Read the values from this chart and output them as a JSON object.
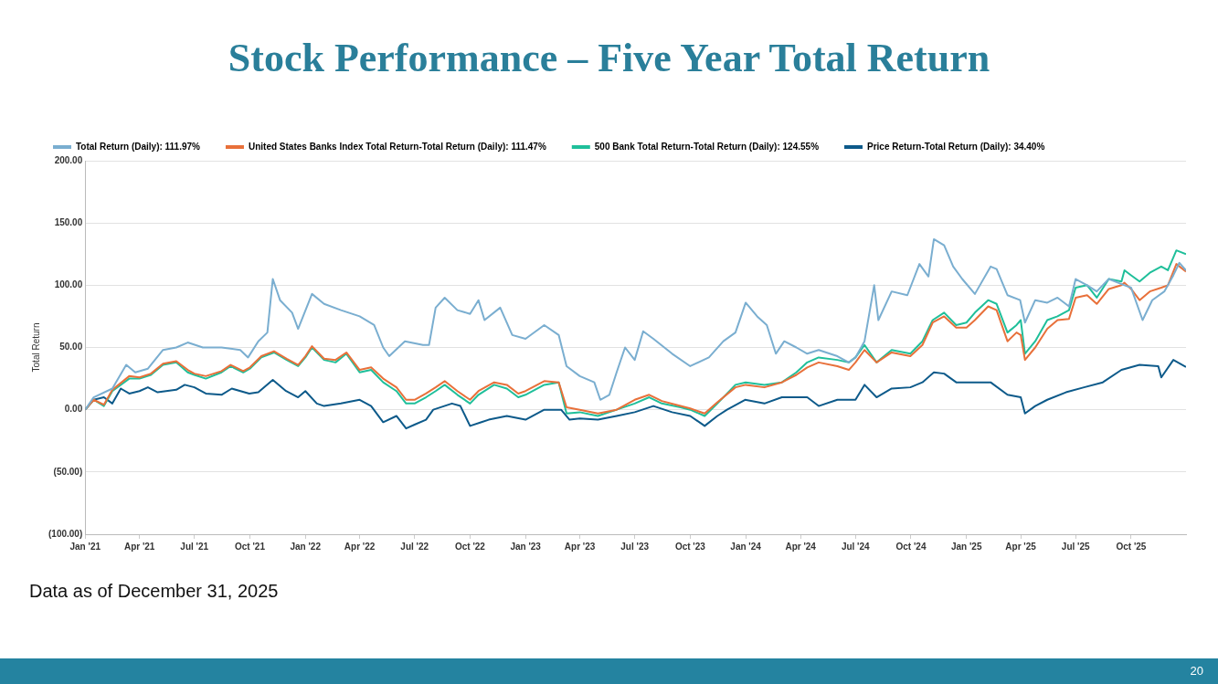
{
  "chart_data": {
    "type": "line",
    "title": "Stock Performance – Five Year Total Return",
    "ylabel": "Total Return",
    "annotations": [
      "Data as of December 31, 2025",
      "20"
    ],
    "legend": "top",
    "grid": "y",
    "marker": "none",
    "line_style": "solid",
    "ylim": [
      -100,
      200
    ],
    "yticks": [
      {
        "value": -100,
        "label": "(100.00)"
      },
      {
        "value": -50,
        "label": "(50.00)"
      },
      {
        "value": 0,
        "label": "0.00"
      },
      {
        "value": 50,
        "label": "50.00"
      },
      {
        "value": 100,
        "label": "100.00"
      },
      {
        "value": 150,
        "label": "150.00"
      },
      {
        "value": 200,
        "label": "200.00"
      }
    ],
    "xlim": [
      "2021-01-01",
      "2025-12-31"
    ],
    "xticks": [
      {
        "value": "2021-01-01",
        "label": "Jan '21"
      },
      {
        "value": "2021-04-01",
        "label": "Apr '21"
      },
      {
        "value": "2021-07-01",
        "label": "Jul '21"
      },
      {
        "value": "2021-10-01",
        "label": "Oct '21"
      },
      {
        "value": "2022-01-01",
        "label": "Jan '22"
      },
      {
        "value": "2022-04-01",
        "label": "Apr '22"
      },
      {
        "value": "2022-07-01",
        "label": "Jul '22"
      },
      {
        "value": "2022-10-01",
        "label": "Oct '22"
      },
      {
        "value": "2023-01-01",
        "label": "Jan '23"
      },
      {
        "value": "2023-04-01",
        "label": "Apr '23"
      },
      {
        "value": "2023-07-01",
        "label": "Jul '23"
      },
      {
        "value": "2023-10-01",
        "label": "Oct '23"
      },
      {
        "value": "2024-01-01",
        "label": "Jan '24"
      },
      {
        "value": "2024-04-01",
        "label": "Apr '24"
      },
      {
        "value": "2024-07-01",
        "label": "Jul '24"
      },
      {
        "value": "2024-10-01",
        "label": "Oct '24"
      },
      {
        "value": "2025-01-01",
        "label": "Jan '25"
      },
      {
        "value": "2025-04-01",
        "label": "Apr '25"
      },
      {
        "value": "2025-07-01",
        "label": "Jul '25"
      },
      {
        "value": "2025-10-01",
        "label": "Oct '25"
      }
    ],
    "series": [
      {
        "name": "Total Return (Daily): 111.97%",
        "color": "#7aaed0",
        "x": [
          "2021-01-01",
          "2021-01-15",
          "2021-02-15",
          "2021-03-10",
          "2021-03-25",
          "2021-04-15",
          "2021-05-10",
          "2021-06-01",
          "2021-06-20",
          "2021-07-15",
          "2021-08-15",
          "2021-09-15",
          "2021-09-28",
          "2021-10-15",
          "2021-10-30",
          "2021-11-08",
          "2021-11-20",
          "2021-12-10",
          "2021-12-20",
          "2022-01-12",
          "2022-02-01",
          "2022-03-01",
          "2022-04-01",
          "2022-04-25",
          "2022-05-10",
          "2022-05-20",
          "2022-06-15",
          "2022-07-15",
          "2022-07-25",
          "2022-08-05",
          "2022-08-20",
          "2022-09-10",
          "2022-10-01",
          "2022-10-15",
          "2022-10-25",
          "2022-11-20",
          "2022-12-10",
          "2023-01-01",
          "2023-02-01",
          "2023-02-25",
          "2023-03-10",
          "2023-04-01",
          "2023-04-25",
          "2023-05-05",
          "2023-05-20",
          "2023-06-01",
          "2023-06-15",
          "2023-07-01",
          "2023-07-15",
          "2023-08-01",
          "2023-09-01",
          "2023-10-01",
          "2023-11-01",
          "2023-11-25",
          "2023-12-15",
          "2024-01-01",
          "2024-01-20",
          "2024-02-05",
          "2024-02-20",
          "2024-03-05",
          "2024-03-25",
          "2024-04-12",
          "2024-05-01",
          "2024-06-01",
          "2024-06-20",
          "2024-07-01",
          "2024-07-16",
          "2024-08-01",
          "2024-08-08",
          "2024-08-30",
          "2024-09-25",
          "2024-10-15",
          "2024-10-30",
          "2024-11-08",
          "2024-11-25",
          "2024-12-10",
          "2024-12-25",
          "2025-01-15",
          "2025-02-10",
          "2025-02-20",
          "2025-03-10",
          "2025-03-31",
          "2025-04-08",
          "2025-04-25",
          "2025-05-15",
          "2025-06-01",
          "2025-06-20",
          "2025-07-01",
          "2025-07-20",
          "2025-08-05",
          "2025-08-25",
          "2025-09-20",
          "2025-10-01",
          "2025-10-20",
          "2025-11-05",
          "2025-11-25",
          "2025-12-10",
          "2025-12-20",
          "2025-12-31"
        ],
        "values": [
          0,
          10,
          17,
          36,
          30,
          33,
          48,
          50,
          54,
          50,
          50,
          48,
          42,
          55,
          62,
          105,
          88,
          78,
          65,
          93,
          85,
          80,
          75,
          68,
          50,
          43,
          55,
          52,
          52,
          82,
          90,
          80,
          77,
          88,
          72,
          82,
          60,
          57,
          68,
          60,
          35,
          27,
          22,
          8,
          12,
          30,
          50,
          40,
          63,
          57,
          45,
          35,
          42,
          55,
          62,
          86,
          75,
          68,
          45,
          55,
          50,
          45,
          48,
          43,
          38,
          42,
          55,
          100,
          72,
          95,
          92,
          117,
          107,
          137,
          132,
          115,
          105,
          93,
          115,
          113,
          92,
          88,
          70,
          88,
          86,
          90,
          83,
          105,
          100,
          95,
          105,
          100,
          98,
          72,
          88,
          95,
          108,
          118,
          112
        ]
      },
      {
        "name": "United States Banks Index Total Return-Total Return (Daily): 111.47%",
        "color": "#e8703a",
        "x": [
          "2021-01-01",
          "2021-01-15",
          "2021-02-01",
          "2021-02-15",
          "2021-03-15",
          "2021-04-01",
          "2021-04-20",
          "2021-05-10",
          "2021-06-01",
          "2021-06-20",
          "2021-07-01",
          "2021-07-20",
          "2021-08-15",
          "2021-08-30",
          "2021-09-20",
          "2021-10-01",
          "2021-10-20",
          "2021-11-10",
          "2021-12-01",
          "2021-12-20",
          "2022-01-01",
          "2022-01-12",
          "2022-02-01",
          "2022-02-20",
          "2022-03-10",
          "2022-04-01",
          "2022-04-20",
          "2022-05-10",
          "2022-06-01",
          "2022-06-17",
          "2022-07-01",
          "2022-07-20",
          "2022-08-05",
          "2022-08-20",
          "2022-09-10",
          "2022-10-01",
          "2022-10-15",
          "2022-11-10",
          "2022-12-01",
          "2022-12-20",
          "2023-01-01",
          "2023-02-01",
          "2023-02-25",
          "2023-03-10",
          "2023-04-01",
          "2023-05-01",
          "2023-06-01",
          "2023-07-01",
          "2023-07-25",
          "2023-08-15",
          "2023-09-15",
          "2023-10-01",
          "2023-10-25",
          "2023-11-15",
          "2023-12-15",
          "2024-01-01",
          "2024-02-01",
          "2024-03-01",
          "2024-03-25",
          "2024-04-12",
          "2024-05-01",
          "2024-06-01",
          "2024-06-20",
          "2024-07-01",
          "2024-07-16",
          "2024-08-05",
          "2024-08-30",
          "2024-09-30",
          "2024-10-20",
          "2024-11-06",
          "2024-11-25",
          "2024-12-15",
          "2025-01-01",
          "2025-01-15",
          "2025-02-06",
          "2025-02-20",
          "2025-03-10",
          "2025-03-25",
          "2025-04-01",
          "2025-04-08",
          "2025-04-25",
          "2025-05-15",
          "2025-06-01",
          "2025-06-20",
          "2025-07-01",
          "2025-07-20",
          "2025-08-05",
          "2025-08-25",
          "2025-09-15",
          "2025-09-20",
          "2025-10-01",
          "2025-10-15",
          "2025-11-01",
          "2025-11-20",
          "2025-12-01",
          "2025-12-15",
          "2025-12-31"
        ],
        "values": [
          0,
          8,
          4,
          16,
          27,
          26,
          29,
          37,
          39,
          32,
          29,
          27,
          31,
          36,
          31,
          34,
          43,
          47,
          41,
          36,
          43,
          51,
          41,
          40,
          46,
          32,
          34,
          25,
          18,
          8,
          8,
          13,
          18,
          23,
          15,
          8,
          15,
          22,
          20,
          13,
          15,
          23,
          22,
          2,
          0,
          -3,
          0,
          8,
          12,
          7,
          3,
          1,
          -3,
          6,
          18,
          20,
          18,
          22,
          28,
          34,
          38,
          35,
          32,
          38,
          48,
          38,
          46,
          43,
          52,
          70,
          75,
          66,
          66,
          72,
          83,
          80,
          55,
          62,
          60,
          40,
          50,
          65,
          72,
          73,
          90,
          92,
          85,
          97,
          100,
          102,
          97,
          88,
          95,
          98,
          100,
          117,
          111
        ]
      },
      {
        "name": "500 Bank Total Return-Total Return (Daily): 124.55%",
        "color": "#1fbf9a",
        "x": [
          "2021-01-01",
          "2021-01-15",
          "2021-02-01",
          "2021-02-15",
          "2021-03-15",
          "2021-04-01",
          "2021-04-20",
          "2021-05-10",
          "2021-06-01",
          "2021-06-20",
          "2021-07-01",
          "2021-07-20",
          "2021-08-15",
          "2021-08-30",
          "2021-09-20",
          "2021-10-01",
          "2021-10-20",
          "2021-11-10",
          "2021-12-01",
          "2021-12-20",
          "2022-01-01",
          "2022-01-12",
          "2022-02-01",
          "2022-02-20",
          "2022-03-10",
          "2022-04-01",
          "2022-04-20",
          "2022-05-10",
          "2022-06-01",
          "2022-06-17",
          "2022-07-01",
          "2022-07-20",
          "2022-08-05",
          "2022-08-20",
          "2022-09-10",
          "2022-10-01",
          "2022-10-15",
          "2022-11-10",
          "2022-12-01",
          "2022-12-20",
          "2023-01-01",
          "2023-02-01",
          "2023-02-25",
          "2023-03-10",
          "2023-04-01",
          "2023-05-01",
          "2023-06-01",
          "2023-07-01",
          "2023-07-25",
          "2023-08-15",
          "2023-09-15",
          "2023-10-01",
          "2023-10-25",
          "2023-11-15",
          "2023-12-15",
          "2024-01-01",
          "2024-02-01",
          "2024-03-01",
          "2024-03-25",
          "2024-04-12",
          "2024-05-01",
          "2024-06-01",
          "2024-06-20",
          "2024-07-01",
          "2024-07-16",
          "2024-08-05",
          "2024-08-30",
          "2024-09-30",
          "2024-10-20",
          "2024-11-06",
          "2024-11-25",
          "2024-12-15",
          "2025-01-01",
          "2025-01-15",
          "2025-02-06",
          "2025-02-20",
          "2025-03-10",
          "2025-03-25",
          "2025-04-01",
          "2025-04-08",
          "2025-04-25",
          "2025-05-15",
          "2025-06-01",
          "2025-06-20",
          "2025-07-01",
          "2025-07-20",
          "2025-08-05",
          "2025-08-25",
          "2025-09-15",
          "2025-09-20",
          "2025-10-01",
          "2025-10-15",
          "2025-11-01",
          "2025-11-20",
          "2025-12-01",
          "2025-12-15",
          "2025-12-31"
        ],
        "values": [
          0,
          8,
          3,
          15,
          25,
          25,
          28,
          36,
          38,
          30,
          28,
          25,
          30,
          35,
          30,
          33,
          42,
          46,
          40,
          35,
          42,
          50,
          40,
          38,
          45,
          30,
          32,
          22,
          15,
          5,
          5,
          10,
          15,
          20,
          12,
          5,
          12,
          20,
          17,
          10,
          12,
          20,
          22,
          -3,
          -2,
          -5,
          0,
          5,
          10,
          5,
          2,
          0,
          -5,
          5,
          20,
          22,
          20,
          22,
          30,
          38,
          42,
          40,
          38,
          42,
          52,
          38,
          48,
          45,
          55,
          72,
          78,
          68,
          70,
          78,
          88,
          85,
          62,
          68,
          72,
          45,
          55,
          72,
          75,
          80,
          98,
          100,
          90,
          105,
          103,
          112,
          108,
          103,
          110,
          115,
          112,
          128,
          125
        ]
      },
      {
        "name": "Price Return-Total Return (Daily): 34.40%",
        "color": "#0d5a8a",
        "x": [
          "2021-01-01",
          "2021-01-15",
          "2021-02-01",
          "2021-02-15",
          "2021-03-01",
          "2021-03-15",
          "2021-04-01",
          "2021-04-15",
          "2021-05-01",
          "2021-06-01",
          "2021-06-15",
          "2021-07-01",
          "2021-07-20",
          "2021-08-15",
          "2021-09-01",
          "2021-09-30",
          "2021-10-15",
          "2021-11-08",
          "2021-11-30",
          "2021-12-20",
          "2022-01-01",
          "2022-01-20",
          "2022-02-01",
          "2022-03-01",
          "2022-04-01",
          "2022-04-20",
          "2022-05-10",
          "2022-06-01",
          "2022-06-17",
          "2022-07-01",
          "2022-07-20",
          "2022-08-01",
          "2022-09-01",
          "2022-09-15",
          "2022-10-01",
          "2022-10-20",
          "2022-11-01",
          "2022-12-01",
          "2023-01-01",
          "2023-02-01",
          "2023-03-01",
          "2023-03-15",
          "2023-04-01",
          "2023-05-01",
          "2023-06-01",
          "2023-07-01",
          "2023-08-01",
          "2023-09-01",
          "2023-10-01",
          "2023-10-25",
          "2023-11-15",
          "2023-12-01",
          "2023-12-31",
          "2024-02-01",
          "2024-03-01",
          "2024-04-12",
          "2024-05-01",
          "2024-06-01",
          "2024-07-01",
          "2024-07-16",
          "2024-08-05",
          "2024-08-30",
          "2024-09-30",
          "2024-10-20",
          "2024-11-08",
          "2024-11-25",
          "2024-12-15",
          "2025-01-15",
          "2025-02-10",
          "2025-03-10",
          "2025-04-01",
          "2025-04-08",
          "2025-04-25",
          "2025-05-15",
          "2025-06-15",
          "2025-07-15",
          "2025-08-15",
          "2025-09-15",
          "2025-10-15",
          "2025-11-15",
          "2025-11-20",
          "2025-12-10",
          "2025-12-31"
        ],
        "values": [
          0,
          8,
          10,
          5,
          17,
          13,
          15,
          18,
          14,
          16,
          20,
          18,
          13,
          12,
          17,
          13,
          14,
          24,
          15,
          10,
          15,
          5,
          3,
          5,
          8,
          3,
          -10,
          -5,
          -15,
          -12,
          -8,
          0,
          5,
          3,
          -13,
          -10,
          -8,
          -5,
          -8,
          0,
          0,
          -8,
          -7,
          -8,
          -5,
          -2,
          3,
          -2,
          -5,
          -13,
          -5,
          0,
          8,
          5,
          10,
          10,
          3,
          8,
          8,
          20,
          10,
          17,
          18,
          22,
          30,
          29,
          22,
          22,
          22,
          12,
          10,
          -3,
          3,
          8,
          14,
          18,
          22,
          32,
          36,
          35,
          26,
          40,
          34.4
        ]
      }
    ]
  }
}
